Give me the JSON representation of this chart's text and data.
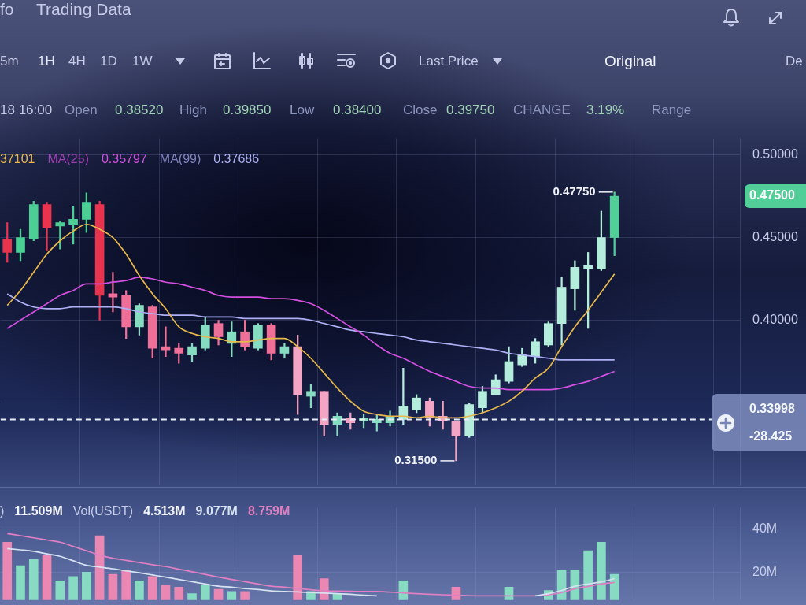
{
  "chart_data": [
    {
      "type": "candlestick",
      "title": "Trading Data",
      "categories": [
        null,
        null,
        null,
        null,
        null,
        null,
        null,
        null,
        null,
        null,
        null,
        null,
        null,
        null,
        null,
        null,
        null,
        null,
        null,
        null,
        null,
        null,
        null,
        null,
        null,
        null,
        null,
        null,
        null,
        null,
        null,
        null,
        null,
        null,
        null,
        null,
        null,
        null,
        null,
        null,
        null,
        null,
        null,
        null,
        null,
        null,
        null,
        null,
        null,
        null,
        null,
        null,
        null,
        null,
        null,
        null
      ],
      "ohlc": [
        [
          0.449,
          0.459,
          0.435,
          0.441
        ],
        [
          0.441,
          0.455,
          0.436,
          0.45
        ],
        [
          0.449,
          0.472,
          0.448,
          0.47
        ],
        [
          0.47,
          0.471,
          0.442,
          0.456
        ],
        [
          0.457,
          0.46,
          0.443,
          0.459
        ],
        [
          0.458,
          0.469,
          0.446,
          0.461
        ],
        [
          0.461,
          0.477,
          0.453,
          0.471
        ],
        [
          0.47,
          0.472,
          0.4,
          0.415
        ],
        [
          0.416,
          0.429,
          0.405,
          0.414
        ],
        [
          0.415,
          0.418,
          0.389,
          0.396
        ],
        [
          0.396,
          0.41,
          0.391,
          0.409
        ],
        [
          0.408,
          0.409,
          0.377,
          0.383
        ],
        [
          0.384,
          0.396,
          0.378,
          0.382
        ],
        [
          0.383,
          0.386,
          0.374,
          0.38
        ],
        [
          0.379,
          0.386,
          0.375,
          0.384
        ],
        [
          0.383,
          0.402,
          0.382,
          0.397
        ],
        [
          0.398,
          0.4,
          0.385,
          0.39
        ],
        [
          0.386,
          0.399,
          0.378,
          0.393
        ],
        [
          0.393,
          0.4,
          0.382,
          0.384
        ],
        [
          0.383,
          0.398,
          0.382,
          0.397
        ],
        [
          0.397,
          0.398,
          0.376,
          0.38
        ],
        [
          0.38,
          0.386,
          0.377,
          0.384
        ],
        [
          0.384,
          0.391,
          0.343,
          0.355
        ],
        [
          0.354,
          0.361,
          0.347,
          0.357
        ],
        [
          0.357,
          0.357,
          0.33,
          0.337
        ],
        [
          0.337,
          0.344,
          0.33,
          0.342
        ],
        [
          0.341,
          0.344,
          0.334,
          0.338
        ],
        [
          0.339,
          0.343,
          0.335,
          0.341
        ],
        [
          0.338,
          0.343,
          0.333,
          0.34
        ],
        [
          0.338,
          0.345,
          0.336,
          0.342
        ],
        [
          0.34,
          0.371,
          0.337,
          0.348
        ],
        [
          0.346,
          0.355,
          0.344,
          0.353
        ],
        [
          0.351,
          0.353,
          0.336,
          0.341
        ],
        [
          0.342,
          0.351,
          0.334,
          0.339
        ],
        [
          0.339,
          0.339,
          0.315,
          0.33
        ],
        [
          0.33,
          0.35,
          0.329,
          0.349
        ],
        [
          0.347,
          0.36,
          0.344,
          0.357
        ],
        [
          0.355,
          0.367,
          0.355,
          0.364
        ],
        [
          0.363,
          0.384,
          0.362,
          0.375
        ],
        [
          0.373,
          0.383,
          0.372,
          0.379
        ],
        [
          0.378,
          0.389,
          0.374,
          0.387
        ],
        [
          0.385,
          0.399,
          0.384,
          0.398
        ],
        [
          0.398,
          0.426,
          0.385,
          0.42
        ],
        [
          0.419,
          0.436,
          0.406,
          0.432
        ],
        [
          0.431,
          0.441,
          0.395,
          0.433
        ],
        [
          0.431,
          0.466,
          0.43,
          0.45
        ],
        [
          0.45,
          0.4775,
          0.439,
          0.475
        ],
        null,
        null,
        null,
        null,
        null,
        null,
        null,
        null,
        null
      ],
      "colors": [
        "#e8344e",
        "#4ccf94",
        "#4ccf94",
        "#e8344e",
        "#4ccf94",
        "#4ccf94",
        "#4ccf94",
        "#e8344e",
        "#ee6f97",
        "#ee6f97",
        "#86dcc0",
        "#ee6f97",
        "#ee6f97",
        "#ee6f97",
        "#86dcc0",
        "#86dcc0",
        "#ee6f97",
        "#86dcc0",
        "#ee6f97",
        "#86dcc0",
        "#ee6f97",
        "#86dcc0",
        "#f2a5c4",
        "#86dcc0",
        "#f2a5c4",
        "#86dcc0",
        "#f2a5c4",
        "#86dcc0",
        "#86dcc0",
        "#86dcc0",
        "#b4eddc",
        "#b4eddc",
        "#f2a5c4",
        "#f2a5c4",
        "#f2a5c4",
        "#b4eddc",
        "#b4eddc",
        "#b4eddc",
        "#b4eddc",
        "#b4eddc",
        "#b4eddc",
        "#b4eddc",
        "#b4eddc",
        "#b4eddc",
        "#b4eddc",
        "#b4eddc",
        "#52cf98",
        null,
        null,
        null,
        null,
        null,
        null,
        null,
        null,
        null
      ],
      "series": [
        {
          "type": "line",
          "color": "#e8b84a",
          "values": [
            0.409,
            0.418,
            0.429,
            0.44,
            0.448,
            0.454,
            0.458,
            0.455,
            0.45,
            0.44,
            0.427,
            0.416,
            0.407,
            0.396,
            0.392,
            0.39,
            0.389,
            0.387,
            0.387,
            0.388,
            0.389,
            0.389,
            0.384,
            0.377,
            0.368,
            0.359,
            0.351,
            0.345,
            0.343,
            0.342,
            0.342,
            0.341,
            0.342,
            0.341,
            0.341,
            0.342,
            0.344,
            0.347,
            0.351,
            0.357,
            0.365,
            0.371,
            0.384,
            0.396,
            0.406,
            0.417,
            0.428,
            null,
            null,
            null,
            null,
            null,
            null,
            null,
            null,
            null
          ]
        },
        {
          "type": "line",
          "name": "MA(25)",
          "color": "#d34fe0",
          "values": [
            0.395,
            0.4,
            0.405,
            0.41,
            0.415,
            0.418,
            0.422,
            0.422,
            0.423,
            0.424,
            0.426,
            0.425,
            0.423,
            0.422,
            0.42,
            0.418,
            0.415,
            0.414,
            0.414,
            0.414,
            0.413,
            0.413,
            0.412,
            0.41,
            0.406,
            0.401,
            0.396,
            0.391,
            0.385,
            0.38,
            0.377,
            0.373,
            0.369,
            0.366,
            0.363,
            0.36,
            0.359,
            0.359,
            0.358,
            0.358,
            0.358,
            0.358,
            0.359,
            0.361,
            0.363,
            0.366,
            0.369,
            null,
            null,
            null,
            null,
            null,
            null,
            null,
            null,
            null
          ]
        },
        {
          "type": "line",
          "name": "MA(99)",
          "color": "#aeb0f5",
          "values": [
            0.416,
            0.411,
            0.408,
            0.407,
            0.407,
            0.408,
            0.408,
            0.408,
            0.408,
            0.407,
            0.405,
            0.404,
            0.403,
            0.403,
            0.403,
            0.402,
            0.402,
            0.402,
            0.401,
            0.401,
            0.401,
            0.401,
            0.401,
            0.4,
            0.398,
            0.396,
            0.394,
            0.393,
            0.392,
            0.391,
            0.39,
            0.388,
            0.387,
            0.386,
            0.385,
            0.384,
            0.383,
            0.382,
            0.38,
            0.379,
            0.378,
            0.377,
            0.376,
            0.376,
            0.376,
            0.376,
            0.376,
            null,
            null,
            null,
            null,
            null,
            null,
            null,
            null,
            null
          ]
        }
      ],
      "ylim": [
        0.3,
        0.51
      ],
      "yticks": [
        {
          "value": 0.35,
          "label": null
        },
        {
          "value": 0.4,
          "label": "0.40000"
        },
        {
          "value": 0.45,
          "label": "0.45000"
        },
        {
          "value": 0.5,
          "label": "0.50000"
        }
      ],
      "grid": true,
      "legend": "top left",
      "ref_lines": [
        {
          "axis": "y",
          "value": 0.33998,
          "line_style": "dashed",
          "color": "#e8edf7"
        }
      ],
      "annotations": [
        "fo",
        "5m",
        "1H",
        "4H",
        "1D",
        "1W",
        "Last Price",
        "Original",
        "De",
        "18 16:00",
        "Open",
        "0.38520",
        "High",
        "0.39850",
        "Low",
        "0.38400",
        "Close",
        "0.39750",
        "CHANGE",
        "3.19%",
        "Range",
        "37101",
        "0.35797",
        "0.37686",
        "0.47750",
        "0.31500",
        "0.47500",
        "0.33998",
        "-28.425"
      ]
    },
    {
      "type": "bar",
      "categories": [
        null,
        null,
        null,
        null,
        null,
        null,
        null,
        null,
        null,
        null,
        null,
        null,
        null,
        null,
        null,
        null,
        null,
        null,
        null,
        null,
        null,
        null,
        null,
        null,
        null,
        null,
        null,
        null,
        null,
        null,
        null,
        null,
        null,
        null,
        null,
        null,
        null,
        null,
        null,
        null,
        null,
        null,
        null,
        null,
        null,
        null,
        null,
        null,
        null,
        null,
        null,
        null,
        null,
        null,
        null,
        null
      ],
      "series": [
        {
          "type": "bar",
          "colors": [
            "#ea88b3",
            "#86dbc2",
            "#86dbc2",
            "#ea88b3",
            "#86dbc2",
            "#86dbc2",
            "#86dbc2",
            "#ea88b3",
            "#ea88b3",
            "#ea88b3",
            "#86dbc2",
            "#ea88b3",
            "#ea88b3",
            "#ea88b3",
            "#86dbc2",
            "#86dbc2",
            "#ea88b3",
            "#86dbc2",
            "#ea88b3",
            "#86dbc2",
            "#ea88b3",
            "#86dbc2",
            "#ea88b3",
            "#86dbc2",
            "#ea88b3",
            "#86dbc2",
            "#ea88b3",
            "#86dbc2",
            "#86dbc2",
            "#86dbc2",
            "#86dbc2",
            "#86dbc2",
            "#ea88b3",
            "#ea88b3",
            "#ea88b3",
            "#86dbc2",
            "#86dbc2",
            "#86dbc2",
            "#86dbc2",
            "#86dbc2",
            "#86dbc2",
            "#86dbc2",
            "#86dbc2",
            "#86dbc2",
            "#86dbc2",
            "#86dbc2",
            "#86dbc2",
            null,
            null,
            null,
            null,
            null,
            null,
            null,
            null,
            null
          ],
          "values": [
            34,
            23,
            26,
            28,
            16,
            18,
            20,
            37,
            19,
            21,
            16,
            18,
            14,
            13,
            10,
            14,
            12,
            11,
            11,
            null,
            null,
            null,
            28,
            11,
            17,
            10,
            null,
            null,
            null,
            null,
            16,
            null,
            null,
            null,
            13,
            null,
            null,
            null,
            13,
            null,
            null,
            11.5,
            21,
            21,
            30,
            34,
            19,
            null,
            null,
            null,
            null,
            null,
            null,
            null,
            null,
            null
          ]
        },
        {
          "type": "line",
          "color": "#d6e2f2",
          "values": [
            31,
            30.4,
            29.7,
            28.5,
            27.4,
            25.3,
            23.2,
            22.4,
            21.6,
            20.6,
            19.7,
            18.7,
            17.7,
            16.6,
            15.6,
            14.5,
            13.5,
            13,
            12.4,
            11.9,
            11.3,
            11,
            10.8,
            10.5,
            10.3,
            10,
            9.7,
            9.3,
            9,
            null,
            null,
            null,
            null,
            null,
            null,
            null,
            null,
            null,
            null,
            null,
            9,
            10,
            11.5,
            13.5,
            14.5,
            15.5,
            17,
            null,
            null,
            null,
            null,
            null,
            null,
            null,
            null,
            null
          ]
        },
        {
          "type": "line",
          "color": "#e07fc2",
          "values": [
            38,
            37,
            36,
            35,
            34,
            32,
            30,
            28,
            26.5,
            25.5,
            24.5,
            23.5,
            22.6,
            21.4,
            20.2,
            19,
            17.7,
            16.6,
            15.6,
            14.5,
            13.5,
            13,
            12.4,
            11.8,
            11.3,
            11.2,
            11.1,
            11,
            11,
            10.7,
            10.4,
            10,
            9.7,
            9.5,
            9.3,
            9.1,
            9,
            9,
            9,
            9,
            9,
            9.5,
            10.5,
            12.3,
            13.4,
            14.5,
            15.2,
            null,
            null,
            null,
            null,
            null,
            null,
            null,
            null,
            null
          ]
        }
      ],
      "ylim": [
        7,
        50
      ],
      "yticks": [
        {
          "value": 20,
          "label": "20M"
        },
        {
          "value": 40,
          "label": "40M"
        }
      ],
      "grid": true,
      "annotations": [
        ")",
        "11.509M",
        "Vol(USDT)",
        "4.513M",
        "9.077M",
        "8.759M"
      ]
    }
  ]
}
